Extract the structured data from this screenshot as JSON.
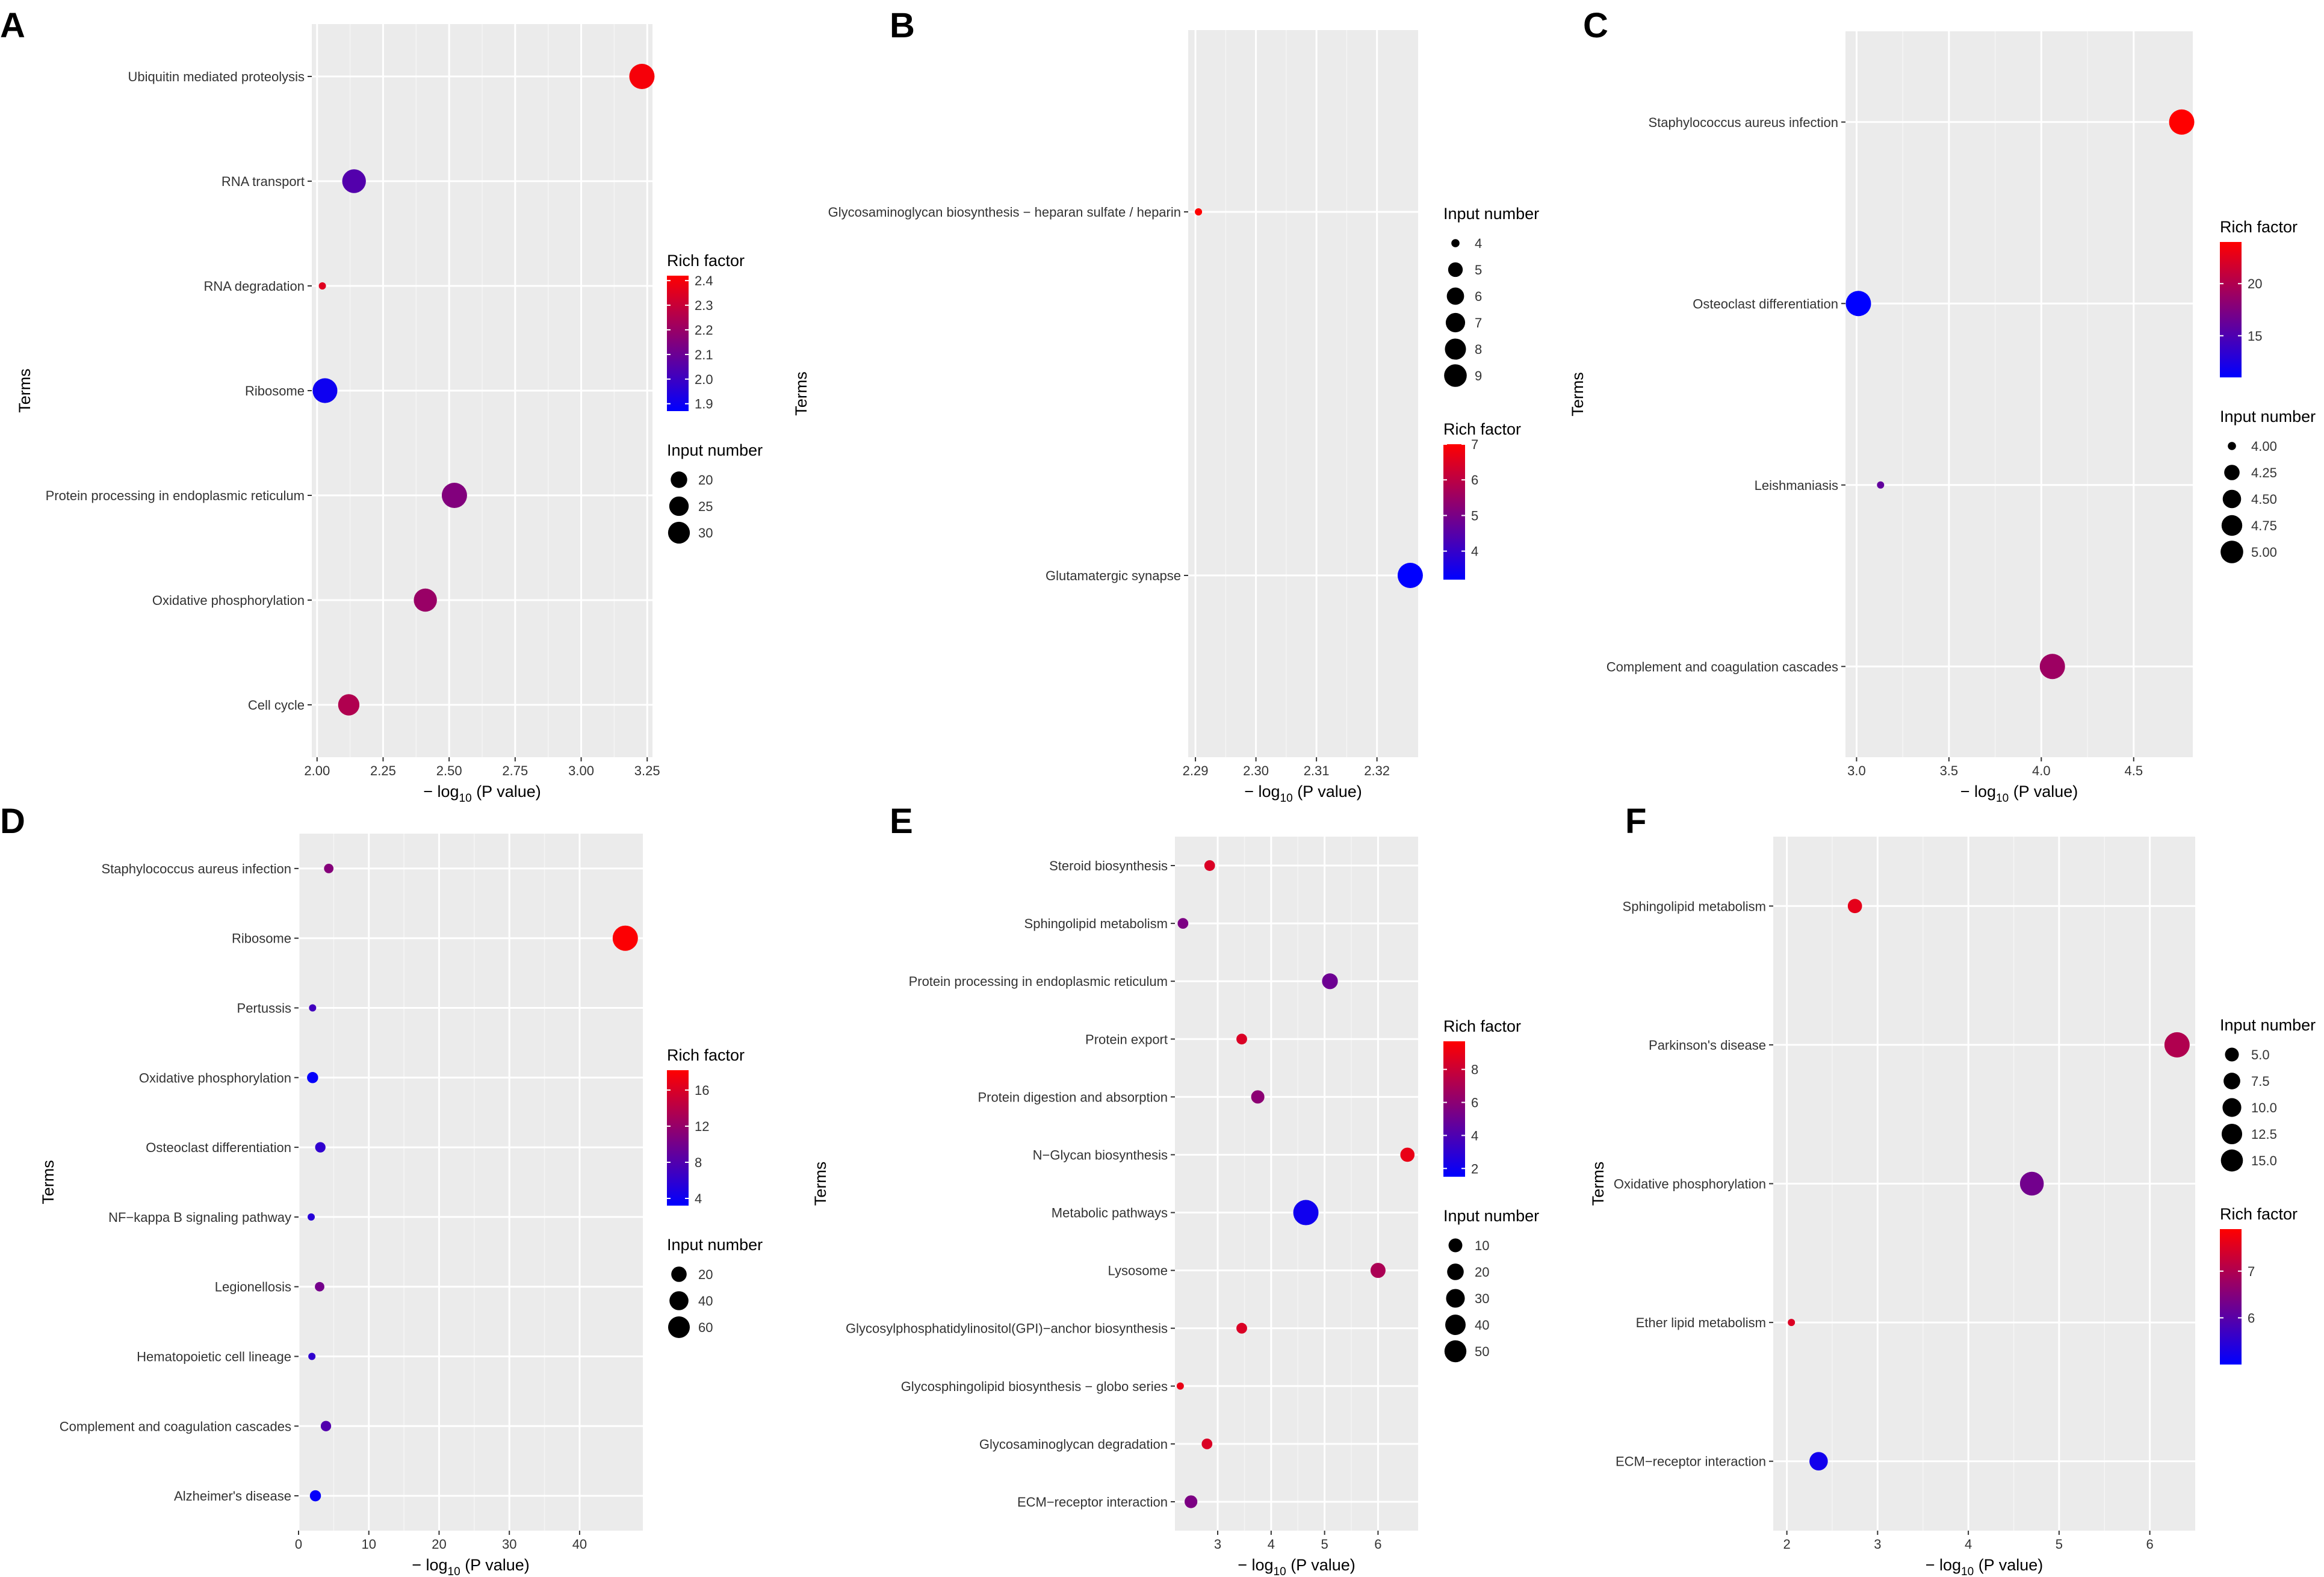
{
  "colors": {
    "panel_bg": "#ebebeb",
    "grid_major": "#ffffff",
    "grid_minor": "#f5f5f5",
    "low": "#0000ff",
    "high": "#ff0000"
  },
  "chart_data": [
    {
      "panel": "A",
      "type": "scatter",
      "xlabel": "− log",
      "xlabel_sub": "10",
      "xlabel_tail": " (P value)",
      "ylabel": "Terms",
      "xlim": [
        1.98,
        3.27
      ],
      "xticks": [
        2.0,
        2.25,
        2.5,
        2.75,
        3.0,
        3.25
      ],
      "xtick_labels": [
        "2.00",
        "2.25",
        "2.50",
        "2.75",
        "3.00",
        "3.25"
      ],
      "terms": [
        "Ubiquitin mediated proteolysis",
        "RNA transport",
        "RNA degradation",
        "Ribosome",
        "Protein processing in endoplasmic reticulum",
        "Oxidative phosphorylation",
        "Cell cycle"
      ],
      "points": [
        {
          "term": "Ubiquitin mediated proteolysis",
          "x": 3.23,
          "rich": 2.4,
          "size": 32
        },
        {
          "term": "RNA transport",
          "x": 2.14,
          "rich": 2.05,
          "size": 29
        },
        {
          "term": "RNA degradation",
          "x": 2.02,
          "rich": 2.35,
          "size": 14
        },
        {
          "term": "Ribosome",
          "x": 2.03,
          "rich": 1.9,
          "size": 31
        },
        {
          "term": "Protein processing in endoplasmic reticulum",
          "x": 2.52,
          "rich": 2.15,
          "size": 32
        },
        {
          "term": "Oxidative phosphorylation",
          "x": 2.41,
          "rich": 2.2,
          "size": 28
        },
        {
          "term": "Cell cycle",
          "x": 2.12,
          "rich": 2.25,
          "size": 25
        }
      ],
      "legend_order": [
        "color",
        "size"
      ],
      "color_legend": {
        "title": "Rich factor",
        "min": 1.87,
        "max": 2.42,
        "ticks": [
          1.9,
          2.0,
          2.1,
          2.2,
          2.3,
          2.4
        ],
        "tick_labels": [
          "1.9",
          "2.0",
          "2.1",
          "2.2",
          "2.3",
          "2.4"
        ]
      },
      "size_legend": {
        "title": "Input number",
        "size_min": 14,
        "size_max": 32,
        "values": [
          20,
          25,
          30
        ],
        "labels": [
          "20",
          "25",
          "30"
        ]
      }
    },
    {
      "panel": "B",
      "type": "scatter",
      "xlabel": "− log",
      "xlabel_sub": "10",
      "xlabel_tail": " (P value)",
      "ylabel": "Terms",
      "xlim": [
        2.2888,
        2.3268
      ],
      "xticks": [
        2.29,
        2.3,
        2.31,
        2.32
      ],
      "xtick_labels": [
        "2.29",
        "2.30",
        "2.31",
        "2.32"
      ],
      "terms": [
        "Glycosaminoglycan biosynthesis − heparan sulfate / heparin",
        "Glutamatergic synapse"
      ],
      "points": [
        {
          "term": "Glycosaminoglycan biosynthesis − heparan sulfate / heparin",
          "x": 2.2905,
          "rich": 7.0,
          "size": 4
        },
        {
          "term": "Glutamatergic synapse",
          "x": 2.3255,
          "rich": 3.2,
          "size": 9
        }
      ],
      "legend_order": [
        "size",
        "color"
      ],
      "color_legend": {
        "title": "Rich factor",
        "min": 3.2,
        "max": 7.0,
        "ticks": [
          4,
          5,
          6,
          7
        ],
        "tick_labels": [
          "4",
          "5",
          "6",
          "7"
        ]
      },
      "size_legend": {
        "title": "Input number",
        "size_min": 4,
        "size_max": 9,
        "values": [
          4,
          5,
          6,
          7,
          8,
          9
        ],
        "labels": [
          "4",
          "5",
          "6",
          "7",
          "8",
          "9"
        ]
      }
    },
    {
      "panel": "C",
      "type": "scatter",
      "xlabel": "− log",
      "xlabel_sub": "10",
      "xlabel_tail": " (P value)",
      "ylabel": "Terms",
      "xlim": [
        2.94,
        4.82
      ],
      "xticks": [
        3.0,
        3.5,
        4.0,
        4.5
      ],
      "xtick_labels": [
        "3.0",
        "3.5",
        "4.0",
        "4.5"
      ],
      "terms": [
        "Staphylococcus aureus infection",
        "Osteoclast differentiation",
        "Leishmaniasis",
        "Complement and coagulation cascades"
      ],
      "points": [
        {
          "term": "Staphylococcus aureus infection",
          "x": 4.76,
          "rich": 24,
          "size": 5
        },
        {
          "term": "Osteoclast differentiation",
          "x": 3.01,
          "rich": 11,
          "size": 5
        },
        {
          "term": "Leishmaniasis",
          "x": 3.13,
          "rich": 16,
          "size": 4
        },
        {
          "term": "Complement and coagulation cascades",
          "x": 4.06,
          "rich": 19,
          "size": 5
        }
      ],
      "legend_order": [
        "color",
        "size"
      ],
      "color_legend": {
        "title": "Rich factor",
        "min": 11,
        "max": 24,
        "ticks": [
          15,
          20
        ],
        "tick_labels": [
          "15",
          "20"
        ]
      },
      "size_legend": {
        "title": "Input number",
        "size_min": 4,
        "size_max": 5,
        "values": [
          4.0,
          4.25,
          4.5,
          4.75,
          5.0
        ],
        "labels": [
          "4.00",
          "4.25",
          "4.50",
          "4.75",
          "5.00"
        ]
      }
    },
    {
      "panel": "D",
      "type": "scatter",
      "xlabel": "− log",
      "xlabel_sub": "10",
      "xlabel_tail": " (P value)",
      "ylabel": "Terms",
      "xlim": [
        0,
        49
      ],
      "xticks": [
        0,
        10,
        20,
        30,
        40
      ],
      "xtick_labels": [
        "0",
        "10",
        "20",
        "30",
        "40"
      ],
      "terms": [
        "Staphylococcus aureus infection",
        "Ribosome",
        "Pertussis",
        "Oxidative phosphorylation",
        "Osteoclast differentiation",
        "NF−kappa B signaling pathway",
        "Legionellosis",
        "Hematopoietic cell lineage",
        "Complement and coagulation cascades",
        "Alzheimer's disease"
      ],
      "points": [
        {
          "term": "Staphylococcus aureus infection",
          "x": 4.3,
          "rich": 11,
          "size": 5
        },
        {
          "term": "Ribosome",
          "x": 46.5,
          "rich": 18,
          "size": 68
        },
        {
          "term": "Pertussis",
          "x": 2.0,
          "rich": 7,
          "size": 4
        },
        {
          "term": "Oxidative phosphorylation",
          "x": 2.0,
          "rich": 3.5,
          "size": 7
        },
        {
          "term": "Osteoclast differentiation",
          "x": 3.1,
          "rich": 6,
          "size": 6
        },
        {
          "term": "NF−kappa B signaling pathway",
          "x": 1.8,
          "rich": 5.5,
          "size": 4
        },
        {
          "term": "Legionellosis",
          "x": 3.0,
          "rich": 10,
          "size": 5
        },
        {
          "term": "Hematopoietic cell lineage",
          "x": 1.9,
          "rich": 6,
          "size": 4
        },
        {
          "term": "Complement and coagulation cascades",
          "x": 3.9,
          "rich": 8,
          "size": 6
        },
        {
          "term": "Alzheimer's disease",
          "x": 2.4,
          "rich": 3.5,
          "size": 7
        }
      ],
      "legend_order": [
        "color",
        "size"
      ],
      "color_legend": {
        "title": "Rich factor",
        "min": 3.2,
        "max": 18.2,
        "ticks": [
          4,
          8,
          12,
          16
        ],
        "tick_labels": [
          "4",
          "8",
          "12",
          "16"
        ]
      },
      "size_legend": {
        "title": "Input number",
        "size_min": 4,
        "size_max": 68,
        "values": [
          20,
          40,
          60
        ],
        "labels": [
          "20",
          "40",
          "60"
        ]
      }
    },
    {
      "panel": "E",
      "type": "scatter",
      "xlabel": "− log",
      "xlabel_sub": "10",
      "xlabel_tail": " (P value)",
      "ylabel": "Terms",
      "xlim": [
        2.2,
        6.75
      ],
      "xticks": [
        3,
        4,
        5,
        6
      ],
      "xtick_labels": [
        "3",
        "4",
        "5",
        "6"
      ],
      "terms": [
        "Steroid biosynthesis",
        "Sphingolipid metabolism",
        "Protein processing in endoplasmic reticulum",
        "Protein export",
        "Protein digestion and absorption",
        "N−Glycan biosynthesis",
        "Metabolic pathways",
        "Lysosome",
        "Glycosylphosphatidylinositol(GPI)−anchor biosynthesis",
        "Glycosphingolipid biosynthesis − globo series",
        "Glycosaminoglycan degradation",
        "ECM−receptor interaction"
      ],
      "points": [
        {
          "term": "Steroid biosynthesis",
          "x": 2.85,
          "rich": 8.5,
          "size": 4
        },
        {
          "term": "Sphingolipid metabolism",
          "x": 2.35,
          "rich": 5.5,
          "size": 4
        },
        {
          "term": "Protein processing in endoplasmic reticulum",
          "x": 5.1,
          "rich": 5.0,
          "size": 14
        },
        {
          "term": "Protein export",
          "x": 3.45,
          "rich": 8.5,
          "size": 4
        },
        {
          "term": "Protein digestion and absorption",
          "x": 3.75,
          "rich": 6.0,
          "size": 8
        },
        {
          "term": "N−Glycan biosynthesis",
          "x": 6.55,
          "rich": 9.0,
          "size": 10
        },
        {
          "term": "Metabolic pathways",
          "x": 4.65,
          "rich": 2.0,
          "size": 55
        },
        {
          "term": "Lysosome",
          "x": 6.0,
          "rich": 7.0,
          "size": 12
        },
        {
          "term": "Glycosylphosphatidylinositol(GPI)−anchor biosynthesis",
          "x": 3.45,
          "rich": 8.5,
          "size": 4
        },
        {
          "term": "Glycosphingolipid biosynthesis − globo series",
          "x": 2.3,
          "rich": 9.0,
          "size": 2
        },
        {
          "term": "Glycosaminoglycan degradation",
          "x": 2.8,
          "rich": 8.5,
          "size": 4
        },
        {
          "term": "ECM−receptor interaction",
          "x": 2.5,
          "rich": 5.5,
          "size": 7
        }
      ],
      "legend_order": [
        "color",
        "size"
      ],
      "color_legend": {
        "title": "Rich factor",
        "min": 1.5,
        "max": 9.7,
        "ticks": [
          2,
          4,
          6,
          8
        ],
        "tick_labels": [
          "2",
          "4",
          "6",
          "8"
        ]
      },
      "size_legend": {
        "title": "Input number",
        "size_min": 2,
        "size_max": 55,
        "values": [
          10,
          20,
          30,
          40,
          50
        ],
        "labels": [
          "10",
          "20",
          "30",
          "40",
          "50"
        ]
      }
    },
    {
      "panel": "F",
      "type": "scatter",
      "xlabel": "− log",
      "xlabel_sub": "10",
      "xlabel_tail": " (P value)",
      "ylabel": "Terms",
      "xlim": [
        1.85,
        6.5
      ],
      "xticks": [
        2,
        3,
        4,
        5,
        6
      ],
      "xtick_labels": [
        "2",
        "3",
        "4",
        "5",
        "6"
      ],
      "terms": [
        "Sphingolipid metabolism",
        "Parkinson's disease",
        "Oxidative phosphorylation",
        "Ether lipid metabolism",
        "ECM−receptor interaction"
      ],
      "points": [
        {
          "term": "Sphingolipid metabolism",
          "x": 2.75,
          "rich": 7.6,
          "size": 5
        },
        {
          "term": "Parkinson's disease",
          "x": 6.3,
          "rich": 7.0,
          "size": 16
        },
        {
          "term": "Oxidative phosphorylation",
          "x": 4.7,
          "rich": 6.3,
          "size": 14
        },
        {
          "term": "Ether lipid metabolism",
          "x": 2.05,
          "rich": 7.5,
          "size": 3
        },
        {
          "term": "ECM−receptor interaction",
          "x": 2.35,
          "rich": 5.2,
          "size": 8
        }
      ],
      "legend_order": [
        "size",
        "color"
      ],
      "color_legend": {
        "title": "Rich factor",
        "min": 5.0,
        "max": 7.9,
        "ticks": [
          6,
          7
        ],
        "tick_labels": [
          "6",
          "7"
        ]
      },
      "size_legend": {
        "title": "Input number",
        "size_min": 3,
        "size_max": 16,
        "values": [
          5.0,
          7.5,
          10.0,
          12.5,
          15.0
        ],
        "labels": [
          "5.0",
          "7.5",
          "10.0",
          "12.5",
          "15.0"
        ]
      }
    }
  ]
}
